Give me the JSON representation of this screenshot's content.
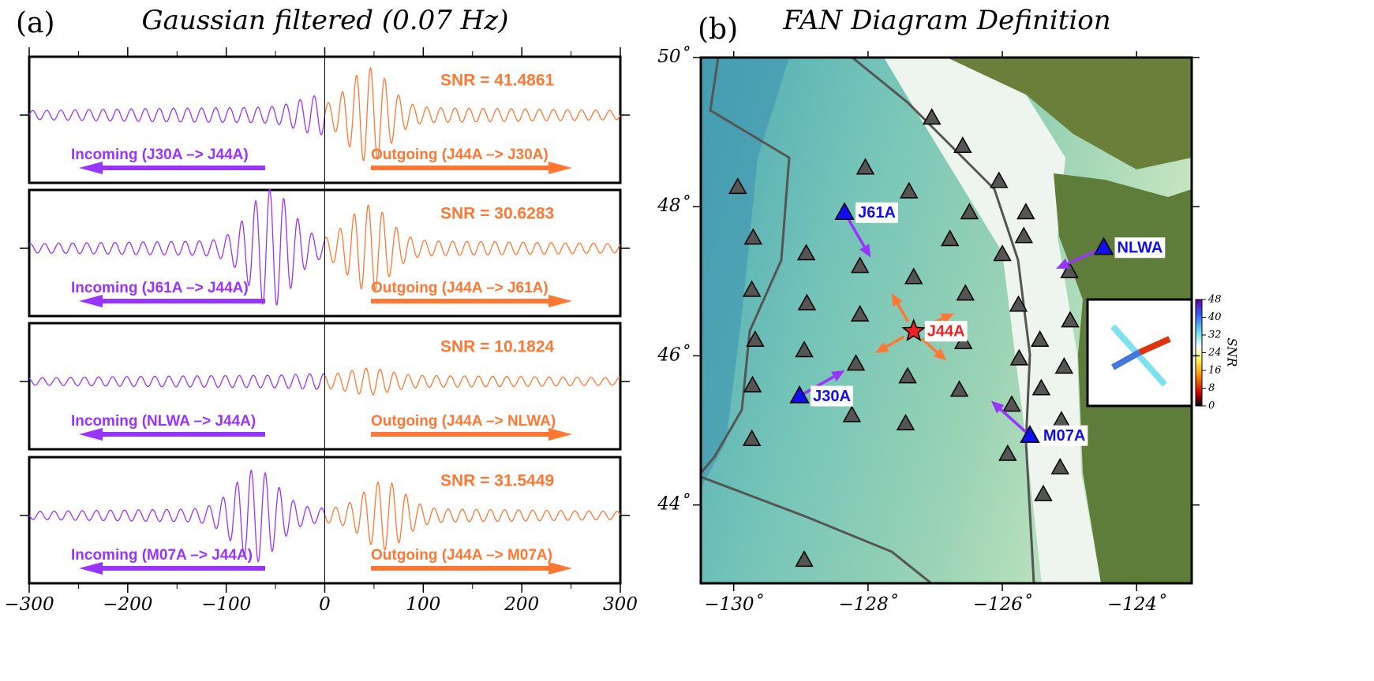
{
  "panel_a": {
    "label": "(a)",
    "title": "Gaussian filtered (0.07 Hz)",
    "xlim": [
      -300,
      300
    ],
    "xticks": [
      {
        "value": -300,
        "label": "−300"
      },
      {
        "value": -200,
        "label": "−200"
      },
      {
        "value": -100,
        "label": "−100"
      },
      0,
      100,
      200,
      300
    ],
    "xminorticks": [
      -250,
      -150,
      -50,
      50,
      150,
      250
    ],
    "traces": [
      {
        "snr": "SNR = 41.4861",
        "incoming": "Incoming (J30A –> J44A)",
        "outgoing": "Outgoing (J44A –> J30A)"
      },
      {
        "snr": "SNR = 30.6283",
        "incoming": "Incoming (J61A –> J44A)",
        "outgoing": "Outgoing (J44A –> J61A)"
      },
      {
        "snr": "SNR = 10.1824",
        "incoming": "Incoming (NLWA –> J44A)",
        "outgoing": "Outgoing (J44A –> NLWA)"
      },
      {
        "snr": "SNR = 31.5449",
        "incoming": "Incoming (M07A –> J44A)",
        "outgoing": "Outgoing (J44A –> M07A)"
      }
    ],
    "incoming_color": "#9933ff",
    "outgoing_color": "#ff7733"
  },
  "panel_b": {
    "label": "(b)",
    "title": "FAN Diagram Definition",
    "xlim": [
      -130.49,
      -123.18
    ],
    "ylim": [
      42.95,
      50
    ],
    "xticks": [
      {
        "value": -130,
        "label": "−130˚"
      },
      {
        "value": -128,
        "label": "−128˚"
      },
      {
        "value": -126,
        "label": "−126˚"
      },
      {
        "value": -124,
        "label": "−124˚"
      }
    ],
    "yticks": [
      {
        "value": 44,
        "label": "44˚"
      },
      {
        "value": 46,
        "label": "46˚"
      },
      {
        "value": 48,
        "label": "48˚"
      },
      {
        "value": 50,
        "label": "50˚"
      }
    ],
    "stations": {
      "lon": [
        -127.05,
        -126.59,
        -128.04,
        -129.94,
        -127.39,
        -126.05,
        -129.71,
        -126.49,
        -125.65,
        -125.68,
        -128.92,
        -126.78,
        -126.0,
        -128.12,
        -125.0,
        -127.32,
        -129.73,
        -128.91,
        -126.55,
        -125.76,
        -128.12,
        -124.99,
        -129.68,
        -126.58,
        -125.44,
        -128.95,
        -128.18,
        -125.75,
        -125.08,
        -127.41,
        -129.72,
        -125.42,
        -126.64,
        -125.86,
        -128.24,
        -127.44,
        -125.12,
        -129.73,
        -125.92,
        -125.14,
        -125.39,
        -128.95
      ],
      "lat": [
        49.19,
        48.81,
        48.52,
        48.26,
        48.2,
        48.34,
        47.58,
        47.92,
        47.92,
        47.6,
        47.37,
        47.56,
        47.36,
        47.2,
        47.13,
        47.05,
        46.88,
        46.7,
        46.83,
        46.68,
        46.55,
        46.47,
        46.21,
        46.18,
        46.21,
        46.07,
        45.89,
        45.96,
        45.85,
        45.72,
        45.6,
        45.56,
        45.54,
        45.34,
        45.2,
        45.09,
        45.13,
        44.88,
        44.68,
        44.5,
        44.14,
        43.26
      ]
    },
    "highlighted": [
      {
        "name": "J61A",
        "lon": -128.35,
        "lat": 47.92
      },
      {
        "name": "NLWA",
        "lon": -124.49,
        "lat": 47.45
      },
      {
        "name": "J30A",
        "lon": -129.02,
        "lat": 45.46
      },
      {
        "name": "M07A",
        "lon": -125.59,
        "lat": 44.93
      }
    ],
    "center": {
      "name": "J44A",
      "lon": -127.32,
      "lat": 46.33
    },
    "colorbar": {
      "label": "SNR",
      "lim": [
        0,
        48
      ],
      "ticks": [
        0,
        8,
        16,
        24,
        32,
        40,
        48
      ]
    }
  }
}
